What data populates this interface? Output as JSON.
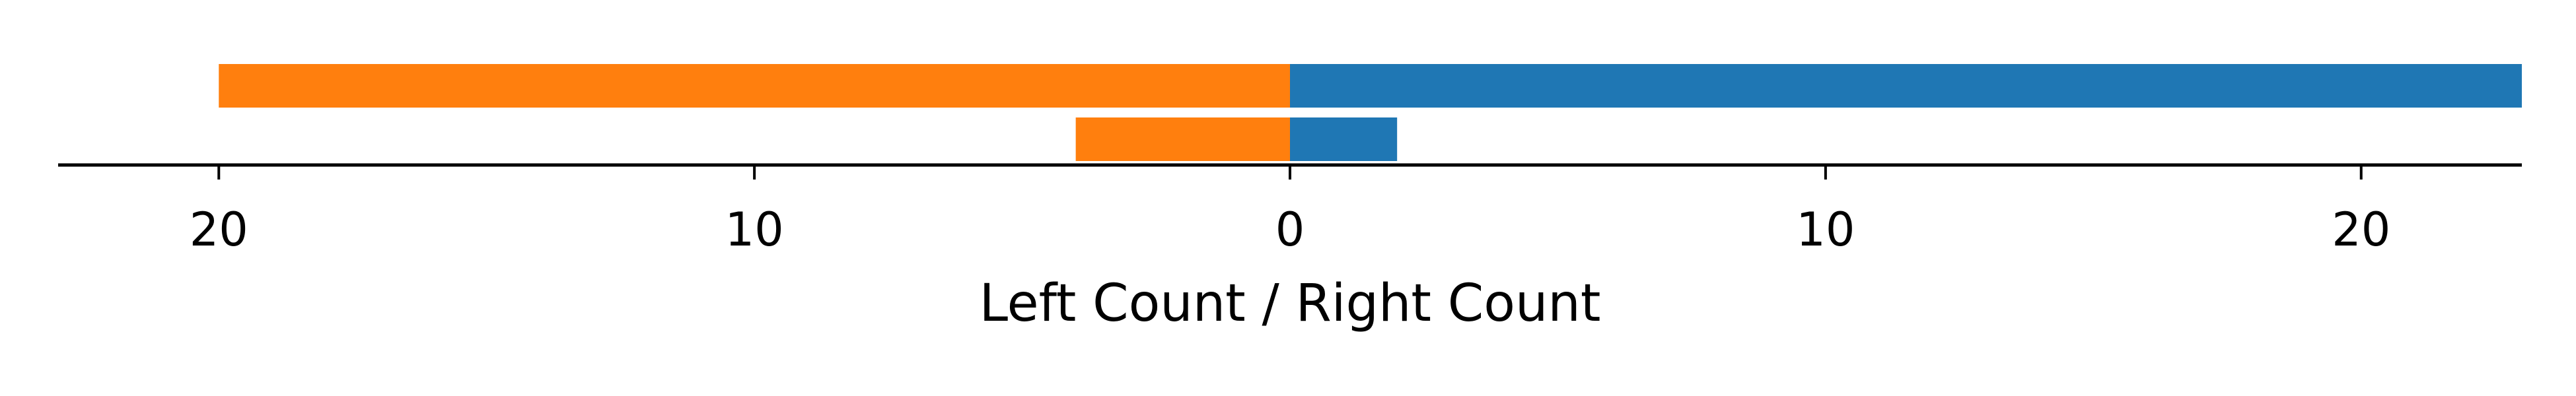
{
  "chart_data": {
    "type": "bar",
    "orientation": "horizontal-diverging",
    "title": "",
    "xlabel": "Left Count / Right Count",
    "ylabel": "",
    "xlim": [
      -23,
      23
    ],
    "x_ticks": [
      {
        "value": -20,
        "label": "20"
      },
      {
        "value": -10,
        "label": "10"
      },
      {
        "value": 0,
        "label": "0"
      },
      {
        "value": 10,
        "label": "10"
      },
      {
        "value": 20,
        "label": "20"
      }
    ],
    "grid": false,
    "series": [
      {
        "side": "left",
        "color": "#ff7f0e",
        "values": [
          20,
          4
        ]
      },
      {
        "side": "right",
        "color": "#1f77b4",
        "values": [
          23,
          2
        ]
      }
    ]
  }
}
